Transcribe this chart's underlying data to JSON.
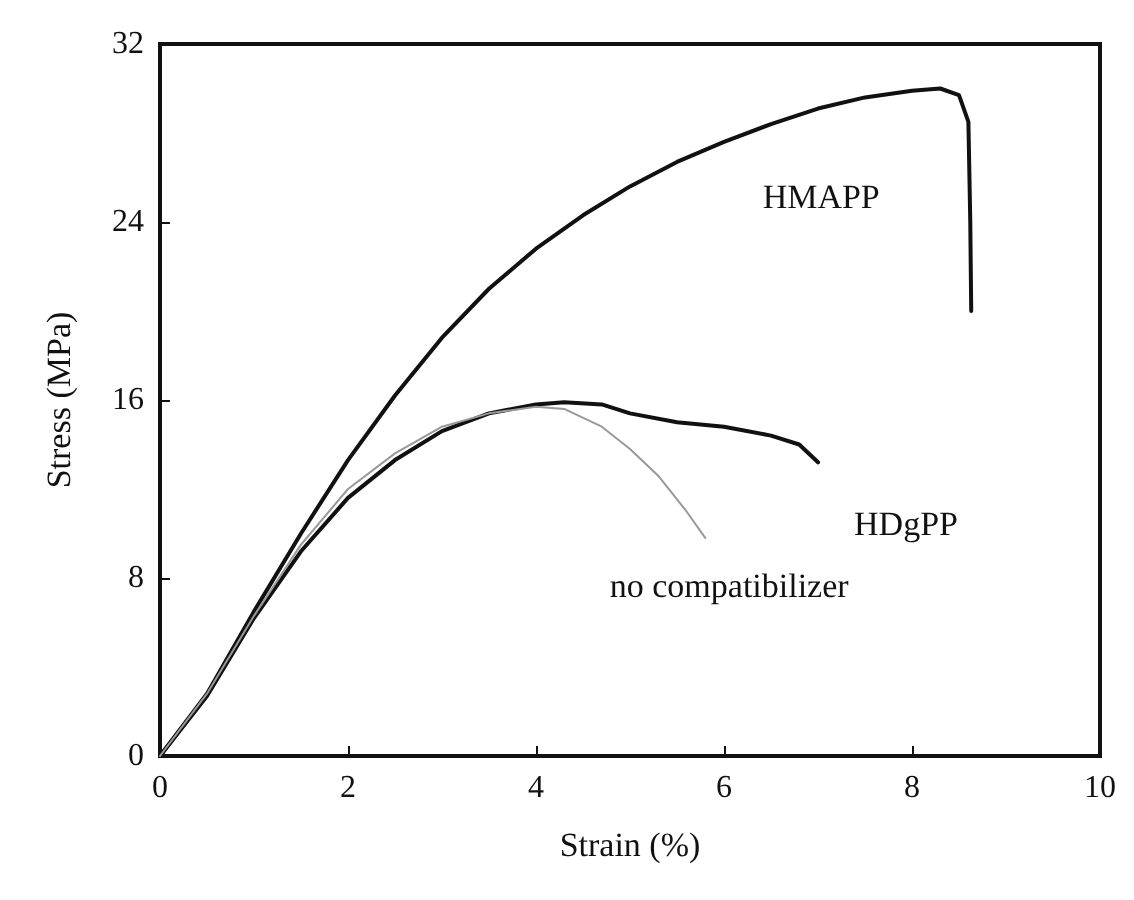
{
  "chart_data": {
    "type": "line",
    "xlabel": "Strain (%)",
    "ylabel": "Stress (MPa)",
    "xlim": [
      0,
      10
    ],
    "xticks": [
      0,
      2,
      4,
      6,
      8,
      10
    ],
    "ylim": [
      0,
      32
    ],
    "yticks": [
      0,
      8,
      16,
      24,
      32
    ],
    "grid": false,
    "marker": "none",
    "line_style": "solid",
    "series": [
      {
        "name": "HMAPP",
        "color": "#111111",
        "x": [
          0,
          0.5,
          1,
          1.5,
          2,
          2.5,
          3,
          3.5,
          4,
          4.5,
          5,
          5.5,
          6,
          6.5,
          7,
          7.5,
          8,
          8.3,
          8.5,
          8.6,
          8.62,
          8.63
        ],
        "values": [
          0,
          2.8,
          6.5,
          10,
          13.3,
          16.2,
          18.8,
          21,
          22.8,
          24.3,
          25.6,
          26.7,
          27.6,
          28.4,
          29.1,
          29.6,
          29.9,
          30,
          29.7,
          28.5,
          24,
          20
        ]
      },
      {
        "name": "HDgPP",
        "color": "#111111",
        "x": [
          0,
          0.5,
          1,
          1.5,
          2,
          2.5,
          3,
          3.5,
          4,
          4.3,
          4.7,
          5,
          5.5,
          6,
          6.5,
          6.8,
          7
        ],
        "values": [
          0,
          2.7,
          6.2,
          9.2,
          11.6,
          13.3,
          14.6,
          15.4,
          15.8,
          15.9,
          15.8,
          15.4,
          15,
          14.8,
          14.4,
          14,
          13.2
        ]
      },
      {
        "name": "no compatibilizer",
        "color": "#999999",
        "x": [
          0,
          0.5,
          1,
          1.5,
          2,
          2.5,
          3,
          3.5,
          4,
          4.3,
          4.7,
          5,
          5.3,
          5.6,
          5.8
        ],
        "values": [
          0,
          2.8,
          6.3,
          9.5,
          12,
          13.6,
          14.8,
          15.4,
          15.7,
          15.6,
          14.8,
          13.8,
          12.6,
          11,
          9.8
        ]
      }
    ]
  }
}
